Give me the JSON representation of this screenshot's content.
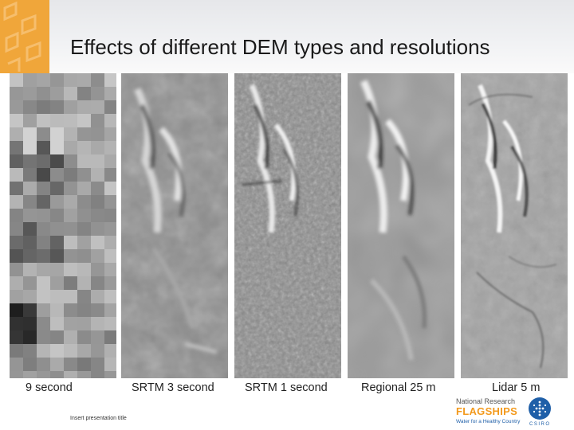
{
  "slide": {
    "title": "Effects of different DEM types and resolutions",
    "footer": "Insert presentation title"
  },
  "panels": [
    {
      "label": "9 second"
    },
    {
      "label": "SRTM 3 second"
    },
    {
      "label": "SRTM 1 second"
    },
    {
      "label": "Regional 25 m"
    },
    {
      "label": "Lidar 5 m"
    }
  ],
  "logo": {
    "line1": "National Research",
    "line2": "FLAGSHIPS",
    "line3": "Water for a Healthy Country",
    "brand": "CSIRO"
  },
  "colors": {
    "accent_orange": "#f0a63a",
    "logo_blue": "#1f5fa8",
    "logo_orange": "#f39a1d"
  }
}
